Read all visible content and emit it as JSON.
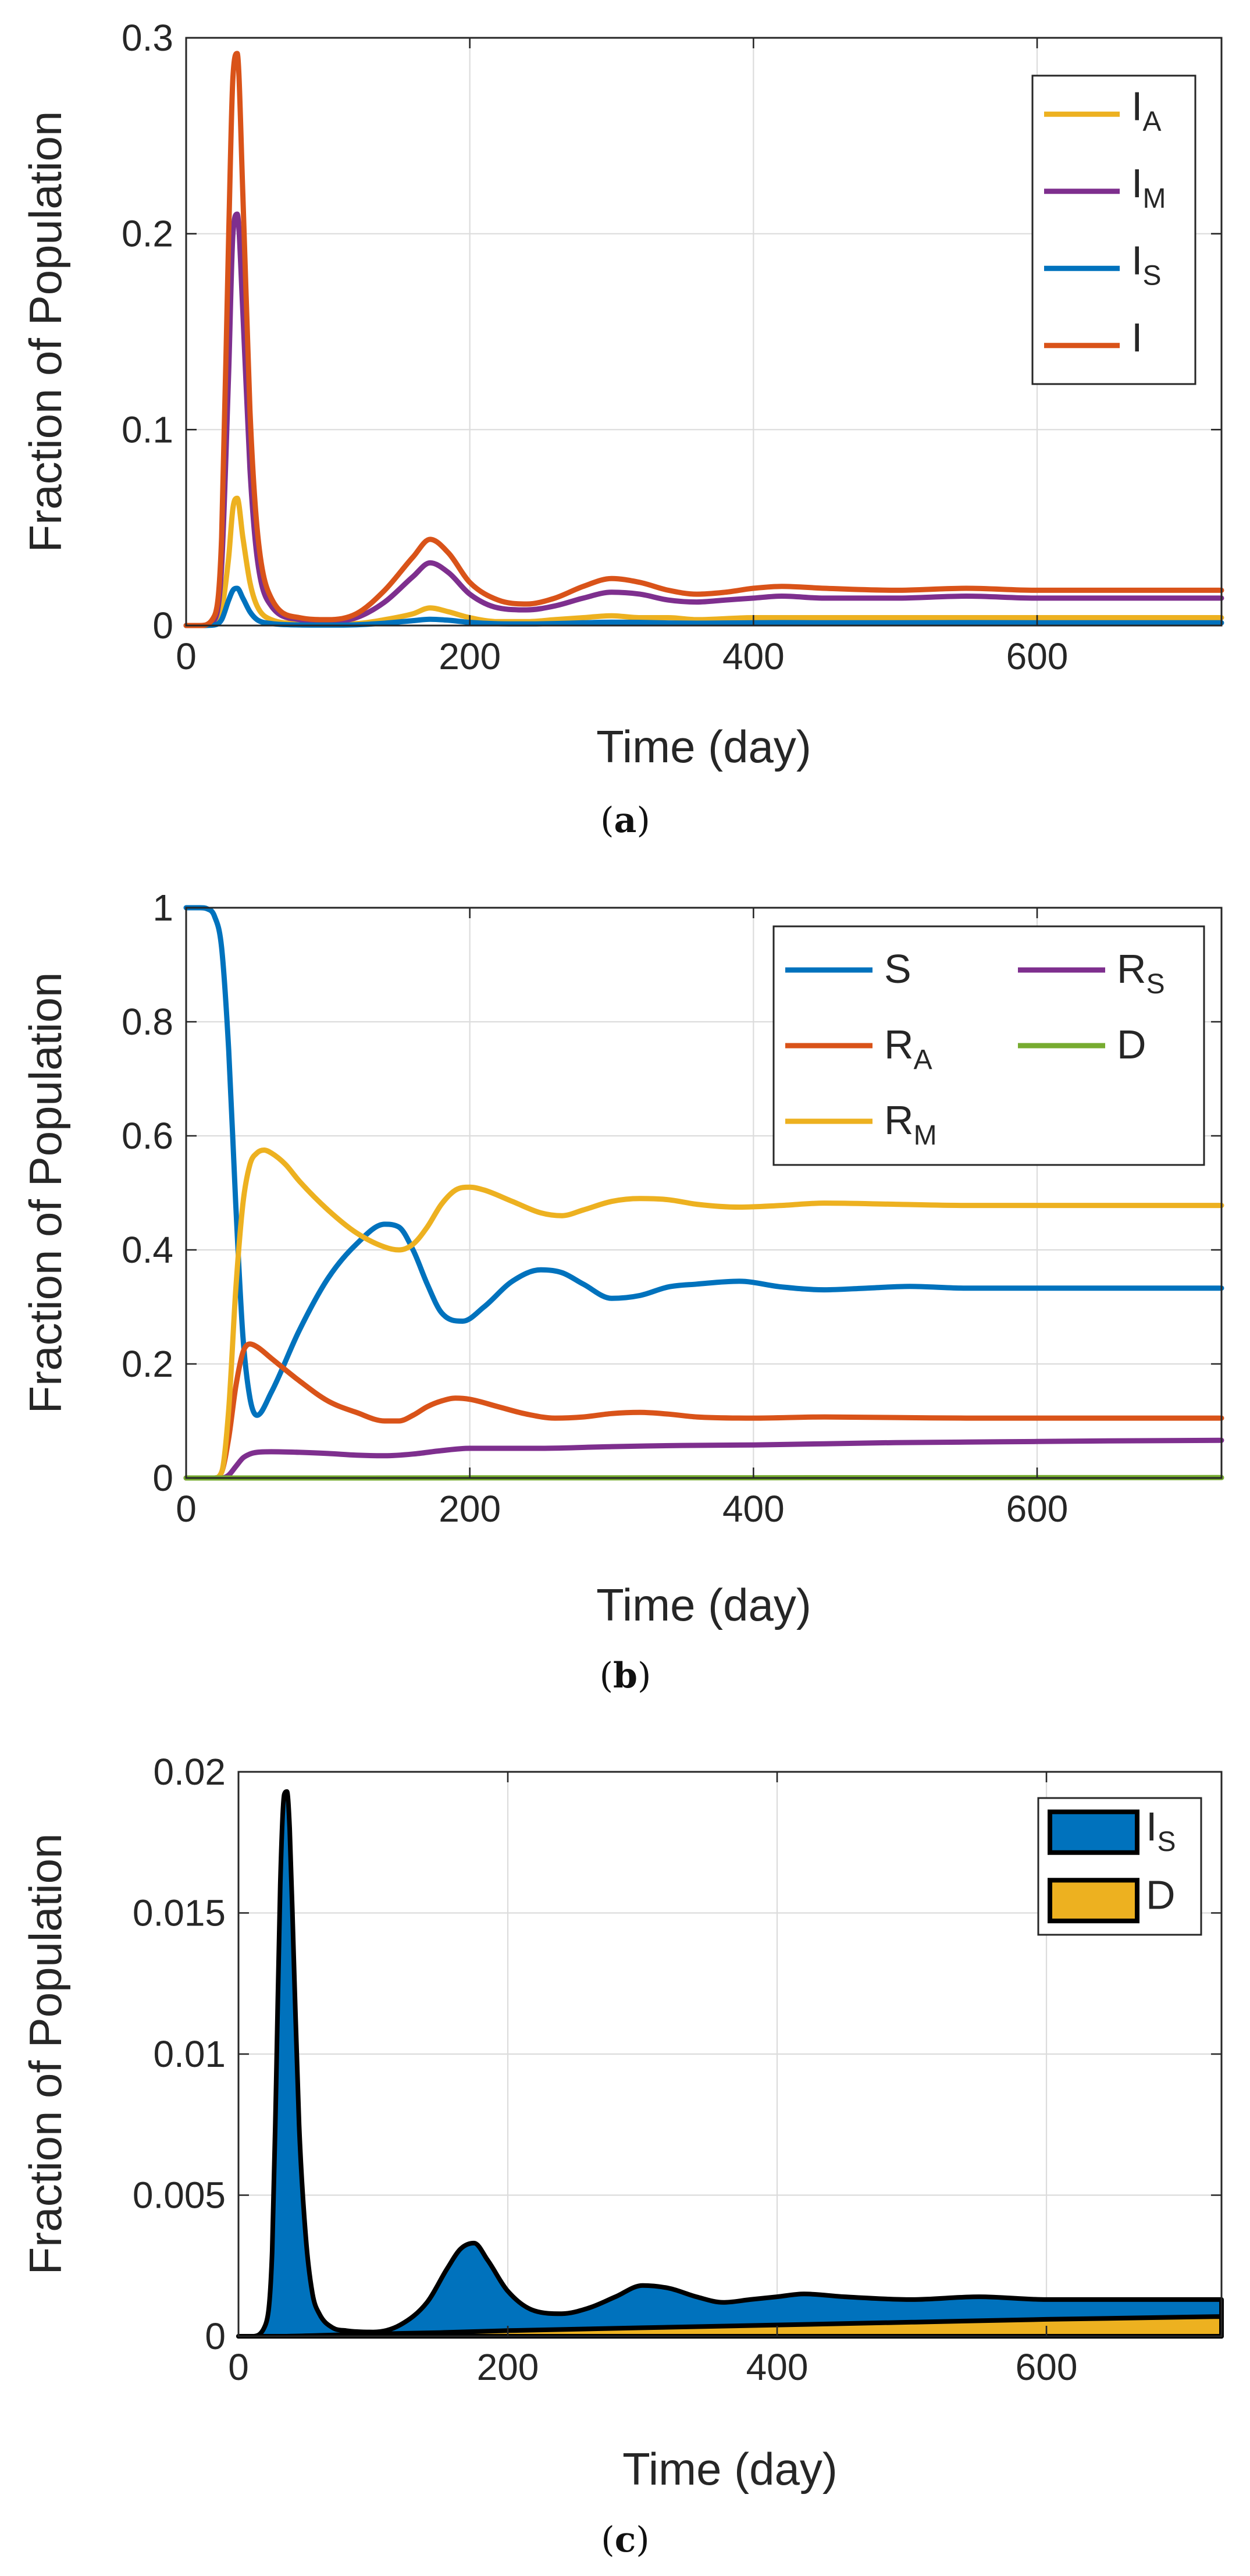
{
  "chart_data": [
    {
      "type": "line",
      "caption": "a",
      "xlabel": "Time (day)",
      "ylabel": "Fraction of Population",
      "xlim": [
        0,
        730
      ],
      "ylim": [
        0,
        0.3
      ],
      "xticks": [
        0,
        200,
        400,
        600
      ],
      "yticks": [
        0,
        0.1,
        0.2,
        0.3
      ],
      "xtick_labels": [
        "0",
        "200",
        "400",
        "600"
      ],
      "ytick_labels": [
        "0",
        "0.1",
        "0.2",
        "0.3"
      ],
      "grid": true,
      "legend_position": "top-right",
      "series": [
        {
          "name": "I",
          "sub": "A",
          "color": "#EDB120",
          "x": [
            0,
            10,
            20,
            25,
            30,
            33,
            36,
            40,
            45,
            50,
            60,
            80,
            100,
            120,
            140,
            160,
            172,
            185,
            200,
            220,
            240,
            260,
            280,
            300,
            320,
            340,
            360,
            400,
            420,
            450,
            500,
            550,
            600,
            650,
            730
          ],
          "y": [
            0,
            0,
            0.001,
            0.008,
            0.035,
            0.06,
            0.065,
            0.045,
            0.022,
            0.01,
            0.003,
            0.001,
            0.0008,
            0.001,
            0.003,
            0.006,
            0.009,
            0.007,
            0.004,
            0.002,
            0.002,
            0.003,
            0.004,
            0.005,
            0.004,
            0.004,
            0.003,
            0.004,
            0.004,
            0.004,
            0.004,
            0.004,
            0.004,
            0.004,
            0.004
          ]
        },
        {
          "name": "I",
          "sub": "M",
          "color": "#7E2F8E",
          "x": [
            0,
            10,
            20,
            25,
            30,
            33,
            36,
            40,
            45,
            50,
            60,
            80,
            100,
            120,
            140,
            160,
            172,
            185,
            200,
            220,
            240,
            260,
            280,
            300,
            320,
            340,
            360,
            380,
            400,
            420,
            450,
            500,
            550,
            600,
            650,
            730
          ],
          "y": [
            0,
            0,
            0.003,
            0.03,
            0.13,
            0.2,
            0.21,
            0.16,
            0.08,
            0.035,
            0.01,
            0.003,
            0.002,
            0.004,
            0.012,
            0.025,
            0.032,
            0.027,
            0.016,
            0.009,
            0.008,
            0.01,
            0.014,
            0.017,
            0.016,
            0.013,
            0.012,
            0.013,
            0.014,
            0.015,
            0.014,
            0.014,
            0.015,
            0.014,
            0.014,
            0.014
          ]
        },
        {
          "name": "I",
          "sub": "S",
          "color": "#0072BD",
          "x": [
            0,
            10,
            20,
            25,
            30,
            33,
            36,
            40,
            45,
            50,
            60,
            80,
            100,
            120,
            140,
            160,
            172,
            185,
            200,
            220,
            240,
            260,
            280,
            300,
            320,
            340,
            360,
            380,
            400,
            420,
            450,
            500,
            550,
            600,
            650,
            730
          ],
          "y": [
            0,
            0,
            0.0003,
            0.003,
            0.013,
            0.018,
            0.019,
            0.014,
            0.007,
            0.003,
            0.001,
            0.0003,
            0.0002,
            0.0004,
            0.0012,
            0.0025,
            0.0032,
            0.0027,
            0.0016,
            0.0009,
            0.0008,
            0.001,
            0.0014,
            0.0017,
            0.0016,
            0.0013,
            0.0012,
            0.0013,
            0.0014,
            0.0015,
            0.0014,
            0.0014,
            0.0015,
            0.0014,
            0.0014,
            0.0014
          ]
        },
        {
          "name": "I",
          "sub": "",
          "color": "#D95319",
          "x": [
            0,
            10,
            20,
            25,
            30,
            33,
            36,
            40,
            45,
            50,
            60,
            80,
            100,
            120,
            140,
            160,
            172,
            185,
            200,
            220,
            240,
            260,
            280,
            300,
            320,
            340,
            360,
            380,
            400,
            420,
            450,
            500,
            550,
            600,
            650,
            730
          ],
          "y": [
            0,
            0,
            0.005,
            0.045,
            0.2,
            0.28,
            0.292,
            0.22,
            0.11,
            0.05,
            0.014,
            0.004,
            0.003,
            0.006,
            0.018,
            0.035,
            0.044,
            0.037,
            0.022,
            0.013,
            0.011,
            0.014,
            0.02,
            0.024,
            0.022,
            0.018,
            0.016,
            0.017,
            0.019,
            0.02,
            0.019,
            0.018,
            0.019,
            0.018,
            0.018,
            0.018
          ]
        }
      ]
    },
    {
      "type": "line",
      "caption": "b",
      "xlabel": "Time (day)",
      "ylabel": "Fraction of Population",
      "xlim": [
        0,
        730
      ],
      "ylim": [
        0,
        1
      ],
      "xticks": [
        0,
        200,
        400,
        600
      ],
      "yticks": [
        0,
        0.2,
        0.4,
        0.6,
        0.8,
        1
      ],
      "xtick_labels": [
        "0",
        "200",
        "400",
        "600"
      ],
      "ytick_labels": [
        "0",
        "0.2",
        "0.4",
        "0.6",
        "0.8",
        "1"
      ],
      "grid": true,
      "legend_position": "top-right",
      "series": [
        {
          "name": "S",
          "sub": "",
          "color": "#0072BD",
          "x": [
            0,
            10,
            15,
            20,
            25,
            30,
            35,
            40,
            45,
            50,
            60,
            80,
            100,
            120,
            140,
            150,
            160,
            170,
            180,
            195,
            210,
            230,
            250,
            265,
            280,
            300,
            320,
            340,
            360,
            390,
            420,
            450,
            480,
            510,
            550,
            600,
            650,
            730
          ],
          "y": [
            1,
            1,
            0.998,
            0.985,
            0.93,
            0.75,
            0.48,
            0.25,
            0.14,
            0.11,
            0.15,
            0.26,
            0.35,
            0.41,
            0.445,
            0.44,
            0.4,
            0.34,
            0.29,
            0.275,
            0.3,
            0.345,
            0.365,
            0.36,
            0.34,
            0.315,
            0.32,
            0.335,
            0.34,
            0.345,
            0.335,
            0.33,
            0.333,
            0.336,
            0.333,
            0.333,
            0.333,
            0.333
          ]
        },
        {
          "name": "R",
          "sub": "A",
          "color": "#D95319",
          "x": [
            0,
            20,
            25,
            30,
            35,
            40,
            45,
            50,
            60,
            80,
            100,
            120,
            140,
            150,
            160,
            170,
            180,
            190,
            200,
            220,
            240,
            260,
            280,
            300,
            320,
            340,
            360,
            400,
            450,
            500,
            550,
            600,
            650,
            730
          ],
          "y": [
            0,
            0,
            0.01,
            0.07,
            0.16,
            0.22,
            0.235,
            0.23,
            0.21,
            0.17,
            0.135,
            0.115,
            0.1,
            0.1,
            0.11,
            0.125,
            0.135,
            0.14,
            0.138,
            0.125,
            0.112,
            0.105,
            0.107,
            0.113,
            0.115,
            0.112,
            0.107,
            0.105,
            0.107,
            0.106,
            0.105,
            0.105,
            0.105,
            0.105
          ]
        },
        {
          "name": "R",
          "sub": "M",
          "color": "#EDB120",
          "x": [
            0,
            20,
            25,
            30,
            35,
            40,
            45,
            50,
            55,
            60,
            70,
            80,
            100,
            120,
            140,
            150,
            160,
            170,
            180,
            190,
            200,
            210,
            230,
            250,
            265,
            280,
            300,
            320,
            340,
            360,
            390,
            420,
            450,
            500,
            550,
            600,
            650,
            730
          ],
          "y": [
            0,
            0,
            0.01,
            0.12,
            0.33,
            0.48,
            0.55,
            0.57,
            0.575,
            0.57,
            0.55,
            0.52,
            0.47,
            0.43,
            0.405,
            0.4,
            0.41,
            0.44,
            0.48,
            0.505,
            0.51,
            0.505,
            0.485,
            0.465,
            0.46,
            0.47,
            0.485,
            0.49,
            0.488,
            0.48,
            0.475,
            0.478,
            0.482,
            0.48,
            0.478,
            0.478,
            0.478,
            0.478
          ]
        },
        {
          "name": "R",
          "sub": "S",
          "color": "#7E2F8E",
          "x": [
            0,
            25,
            30,
            35,
            40,
            45,
            50,
            60,
            80,
            100,
            120,
            140,
            160,
            180,
            200,
            250,
            300,
            350,
            400,
            450,
            500,
            550,
            600,
            650,
            730
          ],
          "y": [
            0,
            0,
            0.005,
            0.02,
            0.035,
            0.042,
            0.045,
            0.046,
            0.045,
            0.043,
            0.04,
            0.039,
            0.042,
            0.048,
            0.052,
            0.052,
            0.055,
            0.057,
            0.058,
            0.06,
            0.062,
            0.063,
            0.064,
            0.065,
            0.066
          ]
        },
        {
          "name": "D",
          "sub": "",
          "color": "#77AC30",
          "x": [
            0,
            100,
            200,
            300,
            400,
            500,
            600,
            730
          ],
          "y": [
            0,
            0,
            0.0002,
            0.0003,
            0.0004,
            0.0005,
            0.0006,
            0.0007
          ]
        }
      ]
    },
    {
      "type": "area",
      "caption": "c",
      "xlabel": "Time (day)",
      "ylabel": "Fraction of Population",
      "xlim": [
        0,
        730
      ],
      "ylim": [
        0,
        0.02
      ],
      "xticks": [
        0,
        200,
        400,
        600
      ],
      "yticks": [
        0,
        0.005,
        0.01,
        0.015,
        0.02
      ],
      "xtick_labels": [
        "0",
        "200",
        "400",
        "600"
      ],
      "ytick_labels": [
        "0",
        "0.005",
        "0.01",
        "0.015",
        "0.02"
      ],
      "grid": true,
      "legend_position": "top-right",
      "series": [
        {
          "name": "I",
          "sub": "S",
          "color": "#0072BD",
          "x": [
            0,
            10,
            20,
            25,
            28,
            31,
            34,
            36,
            38,
            41,
            45,
            50,
            55,
            60,
            70,
            80,
            100,
            120,
            140,
            155,
            165,
            175,
            185,
            200,
            220,
            240,
            260,
            280,
            300,
            320,
            340,
            360,
            380,
            400,
            420,
            450,
            500,
            550,
            600,
            650,
            730
          ],
          "y": [
            0,
            0,
            0.0004,
            0.003,
            0.009,
            0.016,
            0.0192,
            0.0193,
            0.018,
            0.0135,
            0.0075,
            0.0035,
            0.0015,
            0.0008,
            0.0003,
            0.0002,
            0.00015,
            0.0004,
            0.0012,
            0.0024,
            0.0031,
            0.0033,
            0.0027,
            0.0016,
            0.0009,
            0.0008,
            0.001,
            0.0014,
            0.0018,
            0.0017,
            0.0014,
            0.0012,
            0.0013,
            0.0014,
            0.0015,
            0.0014,
            0.0013,
            0.0014,
            0.0013,
            0.0013,
            0.0013
          ]
        },
        {
          "name": "D",
          "sub": "",
          "color": "#EDB120",
          "x": [
            0,
            30,
            60,
            100,
            150,
            200,
            300,
            400,
            500,
            600,
            730
          ],
          "y": [
            0,
            0,
            3e-05,
            8e-05,
            0.00013,
            0.0002,
            0.0003,
            0.0004,
            0.0005,
            0.0006,
            0.0007
          ]
        }
      ]
    }
  ]
}
